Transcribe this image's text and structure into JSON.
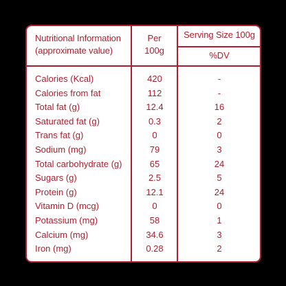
{
  "header": {
    "col1_line1": "Nutritional Information",
    "col1_line2": "(approximate value)",
    "col2_line1": "Per",
    "col2_line2": "100g",
    "col3_top": "Serving Size 100g",
    "col3_bottom": "%DV"
  },
  "rows": [
    {
      "name": "Calories (Kcal)",
      "per": "420",
      "dv": "-"
    },
    {
      "name": "Calories from fat",
      "per": "112",
      "dv": "-"
    },
    {
      "name": "Total fat (g)",
      "per": "12.4",
      "dv": "16"
    },
    {
      "name": "Saturated fat (g)",
      "per": "0.3",
      "dv": "2"
    },
    {
      "name": "Trans fat (g)",
      "per": "0",
      "dv": "0"
    },
    {
      "name": "Sodium (mg)",
      "per": "79",
      "dv": "3"
    },
    {
      "name": "Total carbohydrate (g)",
      "per": "65",
      "dv": "24"
    },
    {
      "name": "Sugars (g)",
      "per": "2.5",
      "dv": "5"
    },
    {
      "name": "Protein (g)",
      "per": "12.1",
      "dv": "24"
    },
    {
      "name": "Vitamin D (mcg)",
      "per": "0",
      "dv": "0"
    },
    {
      "name": "Potassium (mg)",
      "per": "58",
      "dv": "1"
    },
    {
      "name": "Calcium (mg)",
      "per": "34.6",
      "dv": "3"
    },
    {
      "name": "Iron (mg)",
      "per": "0.28",
      "dv": "2"
    }
  ],
  "colors": {
    "accent": "#b01e2e",
    "background": "#000000",
    "panel": "#ffffff"
  }
}
